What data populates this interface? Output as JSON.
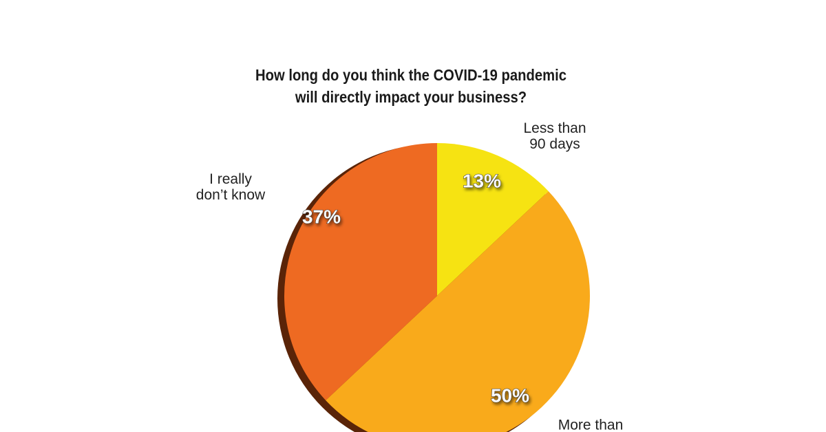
{
  "chart_data": {
    "type": "pie",
    "title": "How long do you think the COVID-19 pandemic\nwill directly impact your business?",
    "categories": [
      "Less than\n90 days",
      "More than",
      "I really\ndon’t know"
    ],
    "values": [
      13,
      50,
      37
    ],
    "value_labels": [
      "13%",
      "50%",
      "37%"
    ],
    "colors": [
      "#f6e312",
      "#f9aa1b",
      "#ee6a22"
    ]
  }
}
